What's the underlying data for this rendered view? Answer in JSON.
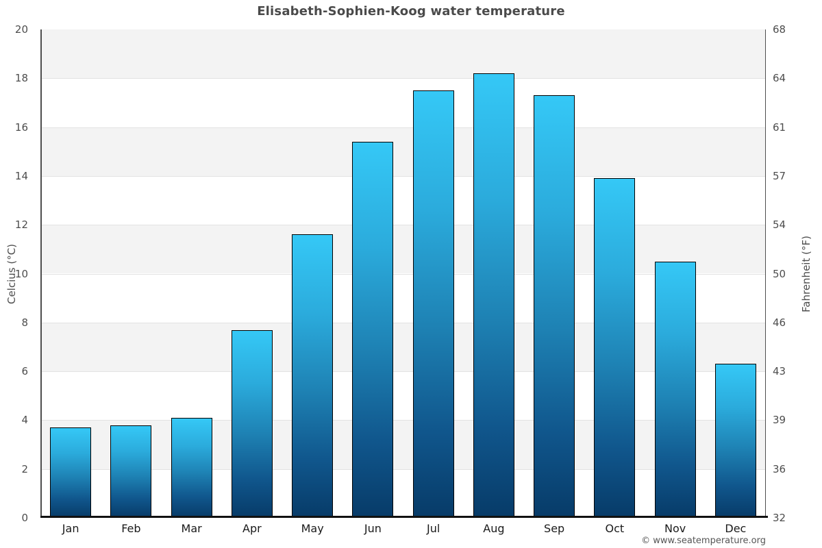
{
  "title": "Elisabeth-Sophien-Koog water temperature",
  "footer": "© www.seatemperature.org",
  "chart_data": {
    "type": "bar",
    "title": "Elisabeth-Sophien-Koog water temperature",
    "categories": [
      "Jan",
      "Feb",
      "Mar",
      "Apr",
      "May",
      "Jun",
      "Jul",
      "Aug",
      "Sep",
      "Oct",
      "Nov",
      "Dec"
    ],
    "values": [
      3.7,
      3.8,
      4.1,
      7.7,
      11.6,
      15.4,
      17.5,
      18.2,
      17.3,
      13.9,
      10.5,
      6.3
    ],
    "ylabel_left": "Celcius (°C)",
    "ylabel_right": "Fahrenheit (°F)",
    "ylim_c": [
      0,
      20
    ],
    "yticks_c": [
      0,
      2,
      4,
      6,
      8,
      10,
      12,
      14,
      16,
      18,
      20
    ],
    "yticks_f": [
      32,
      36,
      39,
      43,
      46,
      50,
      54,
      57,
      61,
      64,
      68
    ],
    "grid": "alternating horizontal bands, light gray lines at even Celsius ticks",
    "legend": "none",
    "colors": {
      "bar_gradient_top": "#35c8f6",
      "bar_gradient_bottom": "#073b68",
      "bar_border": "#000000",
      "band_gray": "#f3f3f3",
      "band_white": "#ffffff",
      "gridline": "#e2e2e2",
      "axis_line": "#4d4d4d",
      "bottom_axis_line": "#111111",
      "title_text": "#4a4a4a",
      "tick_label_text": "#4d4d4d",
      "month_label_text": "#1a1a1a",
      "footer_text": "#555555"
    }
  }
}
